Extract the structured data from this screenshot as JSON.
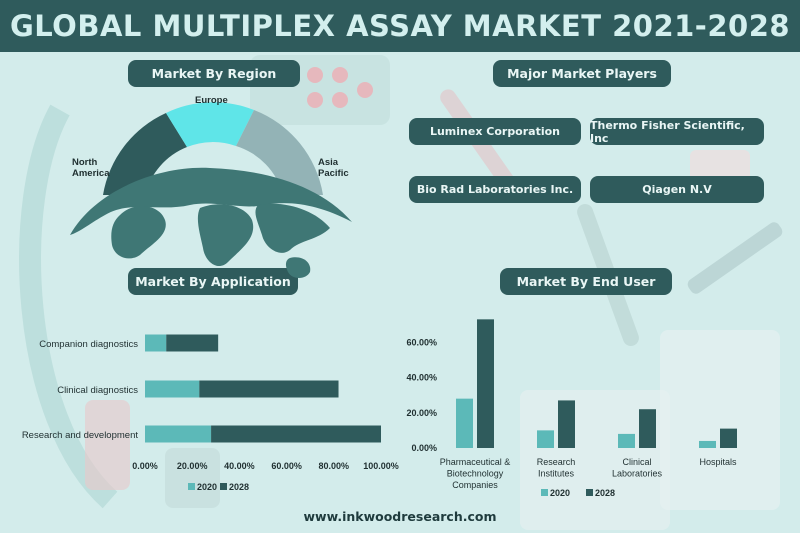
{
  "title": "GLOBAL MULTIPLEX ASSAY MARKET 2021-2028",
  "sections": {
    "region": "Market By Region",
    "players": "Major Market Players",
    "application": "Market By Application",
    "end_user": "Market By End User"
  },
  "regions": {
    "europe": "Europe",
    "north_america": "North America",
    "asia_pacific": "Asia Pacific",
    "colors": {
      "north_america": "#2f5b5c",
      "europe": "#5fe5e8",
      "asia_pacific": "#93b3b6"
    }
  },
  "players": [
    "Luminex Corporation",
    "Thermo Fisher Scientific, Inc",
    "Bio Rad Laboratories Inc.",
    "Qiagen N.V"
  ],
  "footer": "www.inkwoodresearch.com",
  "colors": {
    "series_2020": "#5cb9b8",
    "series_2028": "#2f5b5c",
    "header": "#2f5b5c",
    "background": "#d3eceb"
  },
  "chart_data": [
    {
      "type": "bar",
      "orientation": "horizontal",
      "stacked": true,
      "categories": [
        "Companion diagnostics",
        "Clinical diagnostics",
        "Research and development"
      ],
      "series": [
        {
          "name": "2020",
          "values": [
            9,
            23,
            28
          ]
        },
        {
          "name": "2028",
          "values": [
            22,
            59,
            72
          ]
        }
      ],
      "xlim": [
        0,
        100
      ],
      "xticks": [
        "0.00%",
        "20.00%",
        "40.00%",
        "60.00%",
        "80.00%",
        "100.00%"
      ],
      "legend": "bottom"
    },
    {
      "type": "bar",
      "categories": [
        "Pharmaceutical & Biotechnology Companies",
        "Research Institutes",
        "Clinical Laboratories",
        "Hospitals"
      ],
      "series": [
        {
          "name": "2020",
          "values": [
            28,
            10,
            8,
            4
          ]
        },
        {
          "name": "2028",
          "values": [
            73,
            27,
            22,
            11
          ]
        }
      ],
      "ylim": [
        0,
        80
      ],
      "yticks": [
        "0.00%",
        "20.00%",
        "40.00%",
        "60.00%"
      ],
      "legend": "bottom"
    }
  ]
}
